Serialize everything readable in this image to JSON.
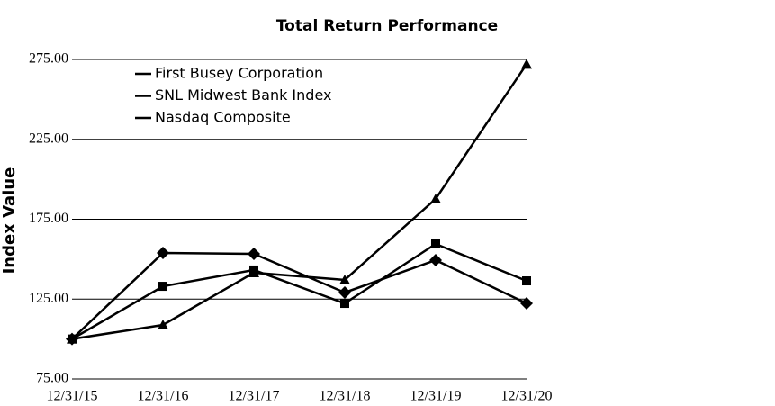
{
  "chart_data": {
    "type": "line",
    "title": "Total Return Performance",
    "y_label": "Index Value",
    "categories": [
      "12/31/15",
      "12/31/16",
      "12/31/17",
      "12/31/18",
      "12/31/19",
      "12/31/20"
    ],
    "series": [
      {
        "name": "First Busey Corporation",
        "color": "#000000",
        "marker": "diamond",
        "values": [
          100,
          153.9,
          153.3,
          129.1,
          149.4,
          122.3
        ]
      },
      {
        "name": "SNL Midwest Bank Index",
        "color": "#000000",
        "marker": "square",
        "values": [
          100,
          133,
          143.2,
          122.3,
          159.5,
          136.4
        ]
      },
      {
        "name": "Nasdaq Composite",
        "color": "#000000",
        "marker": "triangle",
        "values": [
          100,
          108.8,
          141.5,
          137,
          187.7,
          272
        ]
      }
    ],
    "ylim": [
      75,
      275
    ],
    "yticks": [
      {
        "value": 75,
        "label": "75.00"
      },
      {
        "value": 125,
        "label": "125.00"
      },
      {
        "value": 175,
        "label": "175.00"
      },
      {
        "value": 225,
        "label": "225.00"
      },
      {
        "value": 275,
        "label": "275.00"
      }
    ],
    "grid": true
  }
}
